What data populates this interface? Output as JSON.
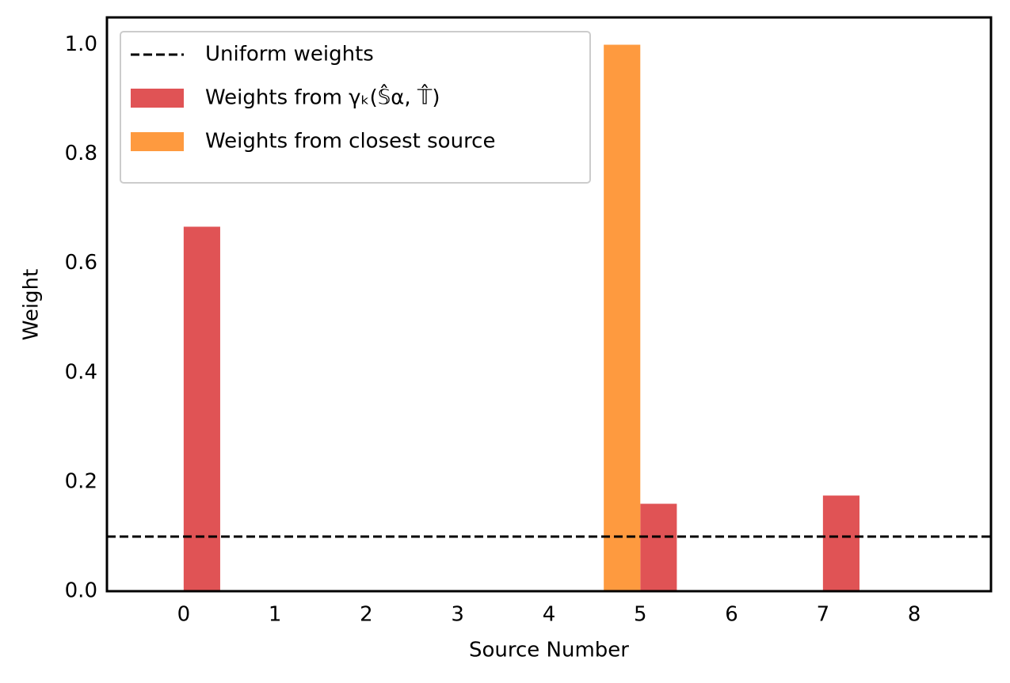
{
  "chart_data": {
    "type": "bar",
    "x_label": "Source Number",
    "y_label": "Weight",
    "x": [
      0,
      1,
      2,
      3,
      4,
      5,
      6,
      7,
      8
    ],
    "series": [
      {
        "name": "Weights from γₖ(𝕊̂α, 𝕋̂)",
        "color": "#e05355",
        "values": [
          0.667,
          0,
          0,
          0,
          0,
          0.16,
          0,
          0.175,
          0
        ]
      },
      {
        "name": "Weights from closest source",
        "color": "#fe9a3f",
        "values": [
          0,
          0,
          0,
          0,
          0,
          1.0,
          0,
          0,
          0
        ]
      }
    ],
    "reference_lines": [
      {
        "name": "Uniform weights",
        "value": 0.1,
        "color": "#000000",
        "style": "dashed"
      }
    ],
    "xlim": [
      -0.84,
      8.84
    ],
    "xticks": [
      0,
      1,
      2,
      3,
      4,
      5,
      6,
      7,
      8
    ],
    "ylim": [
      0,
      1.05
    ],
    "yticks": [
      {
        "value": 0,
        "label": "0.0"
      },
      0.2,
      0.4,
      0.6,
      0.8,
      {
        "value": 1,
        "label": "1.0"
      }
    ],
    "grid": false,
    "legend": "upper left"
  }
}
